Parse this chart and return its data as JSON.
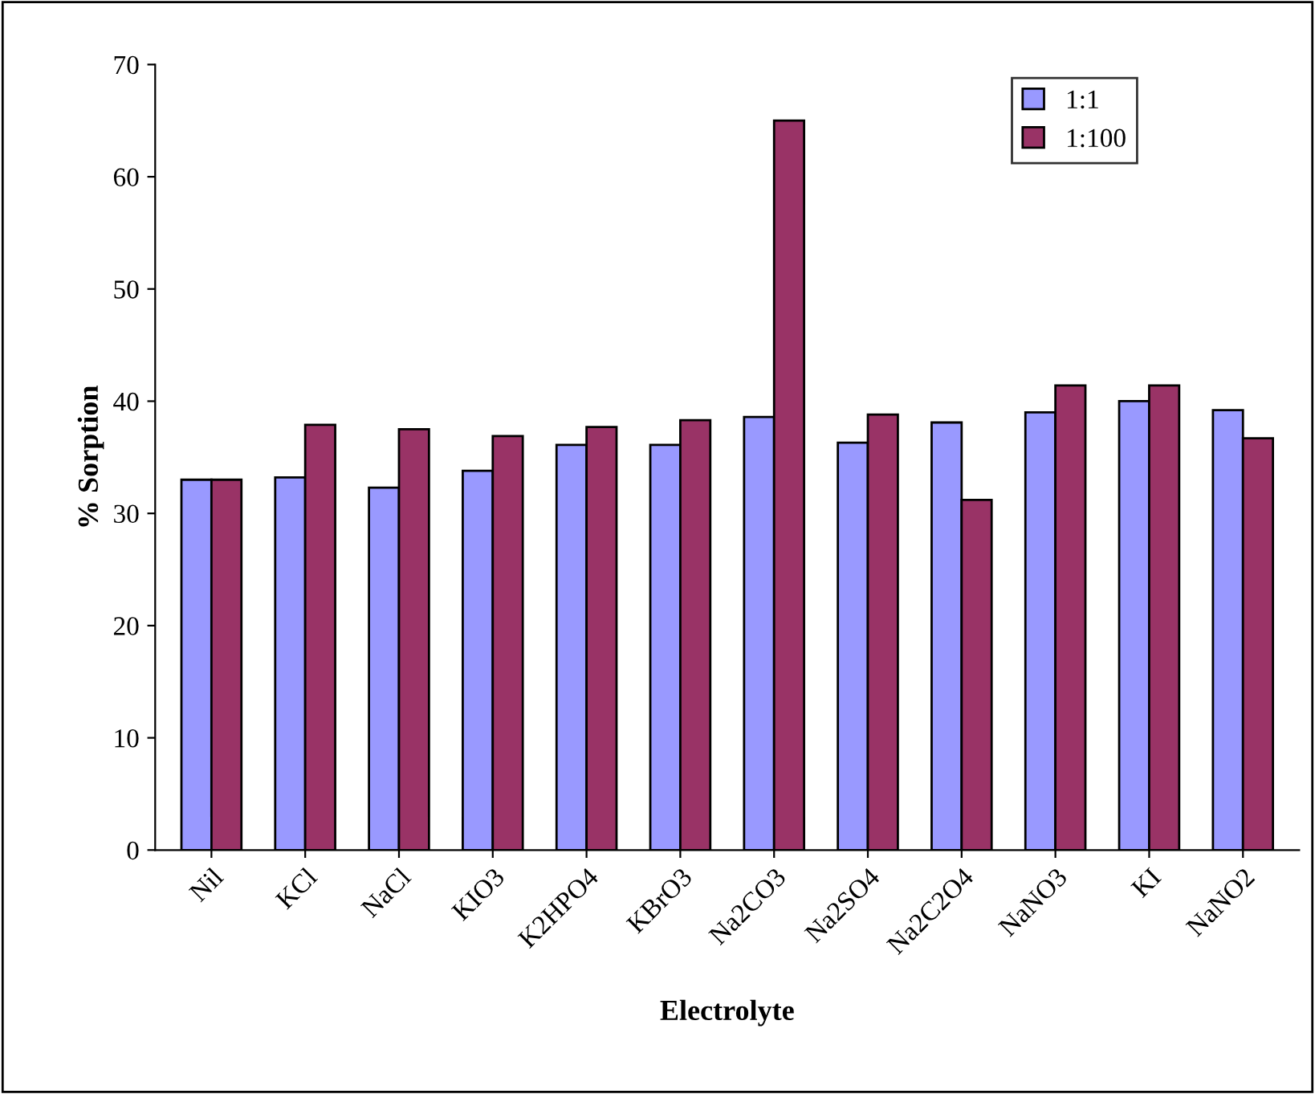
{
  "chart_data": {
    "type": "bar",
    "xlabel": "Electrolyte",
    "ylabel": "% Sorption",
    "categories": [
      "Nil",
      "KCl",
      "NaCl",
      "KIO3",
      "K2HPO4",
      "KBrO3",
      "Na2CO3",
      "Na2SO4",
      "Na2C2O4",
      "NaNO3",
      "KI",
      "NaNO2"
    ],
    "series": [
      {
        "name": "1:1",
        "color": "#9999ff",
        "values": [
          33.0,
          33.2,
          32.3,
          33.8,
          36.1,
          36.1,
          38.6,
          36.3,
          38.1,
          39.0,
          40.0,
          39.2
        ]
      },
      {
        "name": "1:100",
        "color": "#993366",
        "values": [
          33.0,
          37.9,
          37.5,
          36.9,
          37.7,
          38.3,
          65.0,
          38.8,
          31.2,
          41.4,
          41.4,
          36.7
        ]
      }
    ],
    "ylim": [
      0,
      70
    ],
    "yticks": [
      0,
      10,
      20,
      30,
      40,
      50,
      60,
      70
    ],
    "grid": false,
    "legend": "top right"
  }
}
